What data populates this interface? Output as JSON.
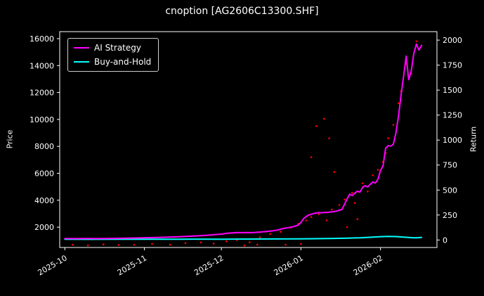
{
  "chart_data": {
    "type": "line",
    "title": "cnoption [AG2606C13300.SHF]",
    "background_color": "#000000",
    "text_color": "#ffffff",
    "spine_color": "#ffffff",
    "legend_position": "upper-left",
    "x_tick_labels": [
      "2025-10",
      "2025-11",
      "2025-12",
      "2026-01",
      "2026-02"
    ],
    "x_tick_days": [
      0,
      31,
      61,
      92,
      123
    ],
    "xlim_days": [
      -2,
      145
    ],
    "x_label_rotation_deg": -30,
    "grid": false,
    "left_axis": {
      "label": "Price",
      "ticks": [
        2000,
        4000,
        6000,
        8000,
        10000,
        12000,
        14000,
        16000
      ],
      "ylim": [
        490,
        16520
      ]
    },
    "right_axis": {
      "label": "Return",
      "ticks": [
        0,
        250,
        500,
        750,
        1000,
        1250,
        1500,
        1750,
        2000
      ],
      "ylim": [
        -75,
        2085
      ]
    },
    "series": [
      {
        "name": "AI Strategy",
        "color": "#ff00ff",
        "axis": "left",
        "points": [
          [
            0,
            1160
          ],
          [
            4,
            1150
          ],
          [
            8,
            1158
          ],
          [
            12,
            1150
          ],
          [
            16,
            1160
          ],
          [
            20,
            1168
          ],
          [
            24,
            1178
          ],
          [
            28,
            1195
          ],
          [
            32,
            1215
          ],
          [
            36,
            1235
          ],
          [
            40,
            1258
          ],
          [
            44,
            1285
          ],
          [
            48,
            1318
          ],
          [
            52,
            1355
          ],
          [
            55,
            1395
          ],
          [
            58,
            1440
          ],
          [
            61,
            1480
          ],
          [
            63,
            1540
          ],
          [
            65,
            1575
          ],
          [
            67,
            1600
          ],
          [
            69,
            1590
          ],
          [
            71,
            1602
          ],
          [
            73,
            1592
          ],
          [
            75,
            1620
          ],
          [
            77,
            1650
          ],
          [
            79,
            1688
          ],
          [
            81,
            1730
          ],
          [
            83,
            1790
          ],
          [
            85,
            1895
          ],
          [
            87,
            1965
          ],
          [
            89,
            2030
          ],
          [
            91,
            2160
          ],
          [
            92,
            2350
          ],
          [
            93,
            2620
          ],
          [
            94,
            2780
          ],
          [
            95,
            2895
          ],
          [
            96,
            2950
          ],
          [
            97,
            3015
          ],
          [
            98,
            3050
          ],
          [
            99,
            3078
          ],
          [
            100,
            3060
          ],
          [
            101,
            3098
          ],
          [
            102,
            3088
          ],
          [
            103,
            3110
          ],
          [
            104,
            3130
          ],
          [
            105,
            3158
          ],
          [
            106,
            3198
          ],
          [
            107,
            3255
          ],
          [
            108,
            3320
          ],
          [
            109,
            3700
          ],
          [
            110,
            4100
          ],
          [
            111,
            4450
          ],
          [
            112,
            4350
          ],
          [
            113,
            4520
          ],
          [
            114,
            4680
          ],
          [
            115,
            4600
          ],
          [
            116,
            4950
          ],
          [
            117,
            5080
          ],
          [
            118,
            4985
          ],
          [
            119,
            5180
          ],
          [
            120,
            5350
          ],
          [
            121,
            5280
          ],
          [
            122,
            5550
          ],
          [
            123,
            6200
          ],
          [
            124,
            6550
          ],
          [
            125,
            7850
          ],
          [
            126,
            8050
          ],
          [
            127,
            8020
          ],
          [
            128,
            8150
          ],
          [
            129,
            9000
          ],
          [
            130,
            10200
          ],
          [
            131,
            11800
          ],
          [
            132,
            13200
          ],
          [
            133,
            14700
          ],
          [
            134,
            12950
          ],
          [
            135,
            13600
          ],
          [
            136,
            14900
          ],
          [
            137,
            15600
          ],
          [
            138,
            15150
          ],
          [
            139,
            15500
          ]
        ]
      },
      {
        "name": "Buy-and-Hold",
        "color": "#00ffff",
        "axis": "left",
        "points": [
          [
            0,
            1100
          ],
          [
            10,
            1095
          ],
          [
            20,
            1100
          ],
          [
            30,
            1105
          ],
          [
            40,
            1102
          ],
          [
            50,
            1110
          ],
          [
            61,
            1106
          ],
          [
            70,
            1115
          ],
          [
            80,
            1122
          ],
          [
            90,
            1132
          ],
          [
            95,
            1140
          ],
          [
            100,
            1150
          ],
          [
            105,
            1162
          ],
          [
            110,
            1182
          ],
          [
            115,
            1212
          ],
          [
            120,
            1262
          ],
          [
            123,
            1292
          ],
          [
            126,
            1312
          ],
          [
            129,
            1300
          ],
          [
            132,
            1262
          ],
          [
            135,
            1222
          ],
          [
            137,
            1212
          ],
          [
            139,
            1240
          ]
        ]
      }
    ],
    "scatter": {
      "name": "trade-dots",
      "color": "#ff0000",
      "marker_radius_px": 1.3,
      "points": [
        [
          3,
          700
        ],
        [
          9,
          645
        ],
        [
          15,
          722
        ],
        [
          21,
          672
        ],
        [
          27,
          700
        ],
        [
          34,
          760
        ],
        [
          41,
          702
        ],
        [
          47,
          820
        ],
        [
          53,
          862
        ],
        [
          58,
          782
        ],
        [
          63,
          950
        ],
        [
          67,
          1052
        ],
        [
          70,
          642
        ],
        [
          72,
          880
        ],
        [
          75,
          702
        ],
        [
          76,
          1252
        ],
        [
          80,
          1500
        ],
        [
          84,
          1652
        ],
        [
          86,
          702
        ],
        [
          88,
          1982
        ],
        [
          91,
          2252
        ],
        [
          92,
          762
        ],
        [
          94,
          2502
        ],
        [
          96,
          2752
        ],
        [
          96,
          7200
        ],
        [
          98,
          9500
        ],
        [
          99,
          2952
        ],
        [
          101,
          10050
        ],
        [
          102,
          2502
        ],
        [
          103,
          8600
        ],
        [
          104,
          3302
        ],
        [
          105,
          6100
        ],
        [
          107,
          3650
        ],
        [
          109,
          4050
        ],
        [
          110,
          2002
        ],
        [
          112,
          4552
        ],
        [
          113,
          3802
        ],
        [
          114,
          2602
        ],
        [
          116,
          5252
        ],
        [
          118,
          4652
        ],
        [
          120,
          5852
        ],
        [
          122,
          6252
        ],
        [
          124,
          6852
        ],
        [
          125,
          7502
        ],
        [
          126,
          8602
        ],
        [
          128,
          9602
        ],
        [
          130,
          11202
        ],
        [
          131,
          12102
        ],
        [
          133,
          14102
        ],
        [
          135,
          13402
        ],
        [
          137,
          15802
        ]
      ]
    }
  }
}
